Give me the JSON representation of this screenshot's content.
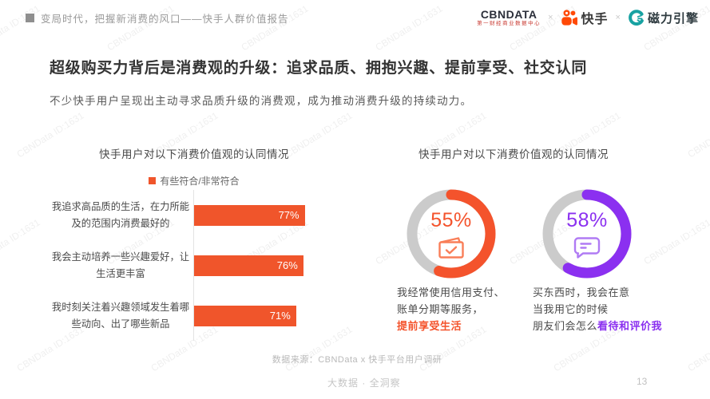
{
  "page": {
    "header_title": "变局时代，把握新消费的风口——快手人群价值报告",
    "logos": {
      "cbndata_name": "CBNDATA",
      "cbndata_subtitle": "第一财经商业数据中心",
      "separator": "×",
      "kuaishou_name": "快手",
      "cili_name": "磁力引擎"
    },
    "main_title": "超级购买力背后是消费观的升级：追求品质、拥抱兴趣、提前享受、社交认同",
    "sub_title": "不少快手用户呈现出主动寻求品质升级的消费观，成为推动消费升级的持续动力。",
    "source": "数据来源：CBNData x 快手平台用户调研",
    "footer_left": "大数据 · 全洞察",
    "page_number": "13",
    "watermark": "CBNData ID:1631"
  },
  "colors": {
    "orange": "#f0552b",
    "donut_orange": "#f4532c",
    "donut_purple": "#8b30f0",
    "ring_gray": "#cbcbcb",
    "kuaishou_orange": "#ff4906",
    "cili_teal": "#17a2a2"
  },
  "chart_data": [
    {
      "type": "bar",
      "orientation": "horizontal",
      "title": "快手用户对以下消费价值观的认同情况",
      "legend": [
        "有些符合/非常符合"
      ],
      "legend_position": "top",
      "categories": [
        "我追求高品质的生活，在力所能及的范围内消费最好的",
        "我会主动培养一些兴趣爱好，让生活更丰富",
        "我时刻关注着兴趣领域发生着哪些动向、出了哪些新品"
      ],
      "values": [
        77,
        76,
        71
      ],
      "unit": "%",
      "xlim": [
        0,
        100
      ],
      "grid": false,
      "bar_color": "#f0552b"
    },
    {
      "type": "pie",
      "subtype": "donut-gauges",
      "title": "快手用户对以下消费价值观的认同情况",
      "donuts": [
        {
          "value": 55,
          "label": "55%",
          "color": "#f4532c",
          "icon": "bill-check-icon",
          "desc_lines": [
            "我经常使用信用支付、",
            "账单分期等服务，"
          ],
          "highlight": "提前享受生活"
        },
        {
          "value": 58,
          "label": "58%",
          "color": "#8b30f0",
          "icon": "chat-bubble-icon",
          "desc_lines": [
            "买东西时，我会在意",
            "当我用它的时候",
            "朋友们会怎么"
          ],
          "highlight": "看待和评价我"
        }
      ]
    }
  ]
}
